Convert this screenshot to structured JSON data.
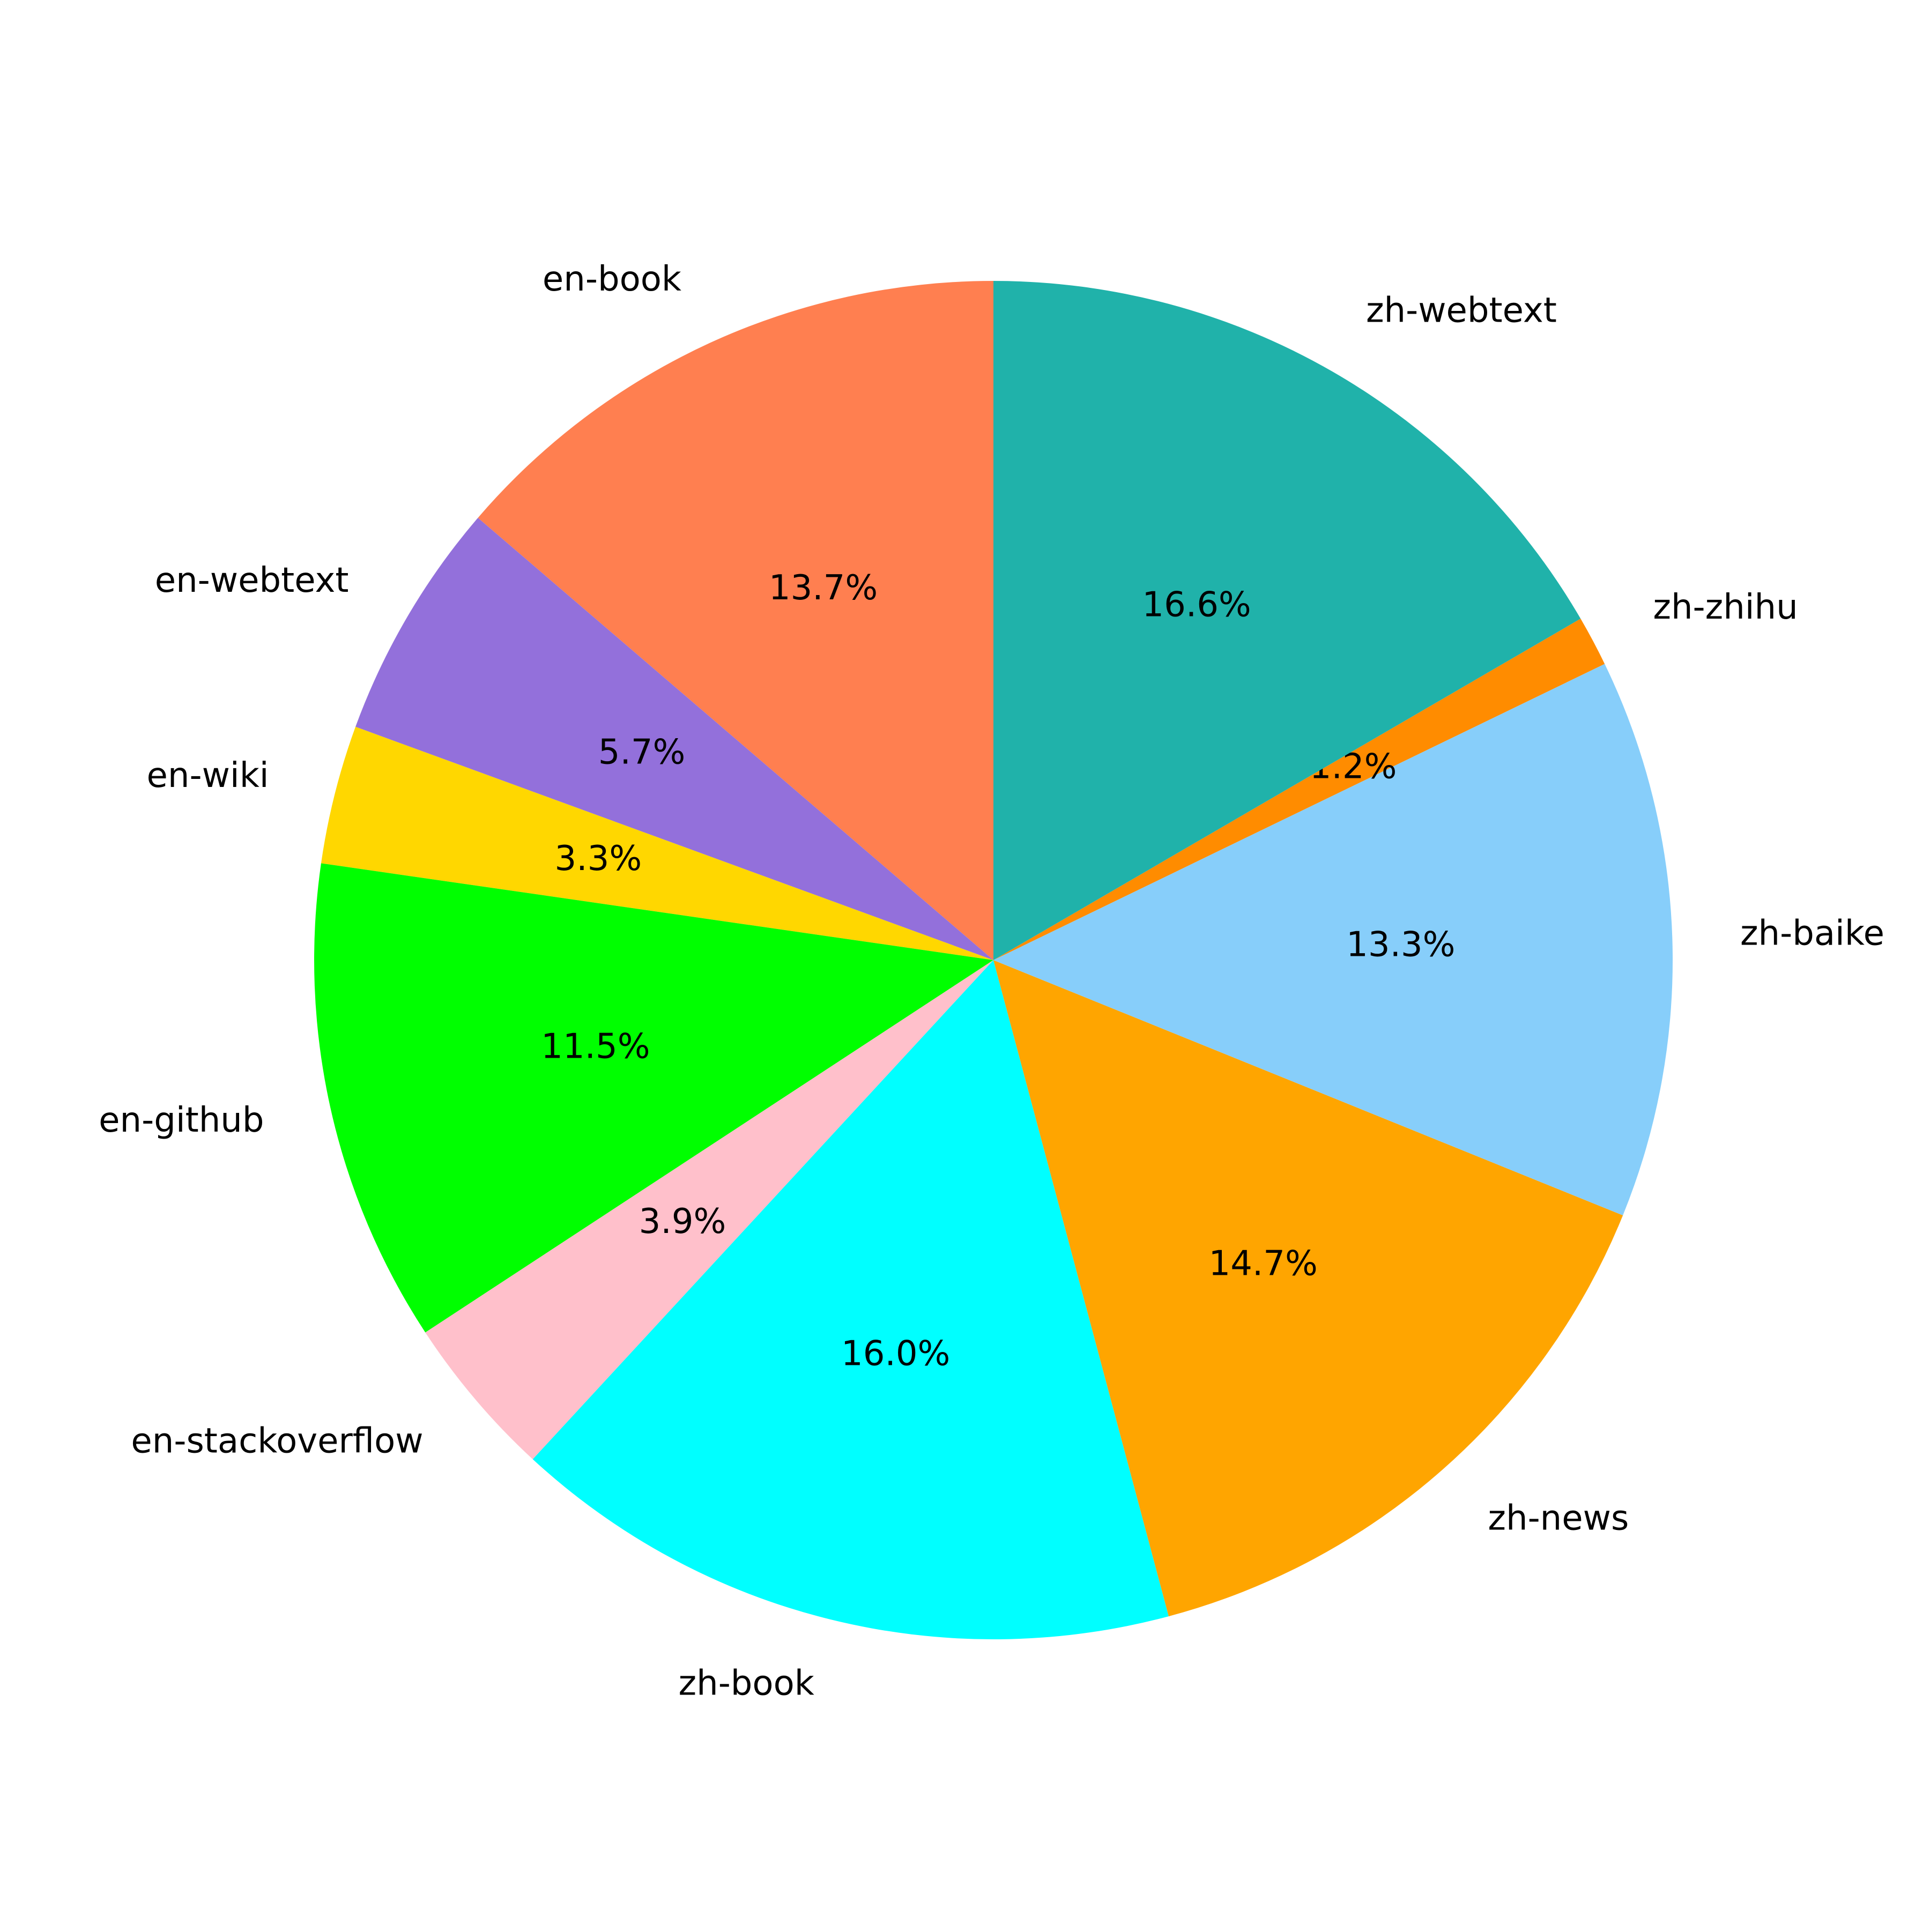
{
  "chart_data": {
    "type": "pie",
    "categories": [
      "en-book",
      "en-webtext",
      "en-wiki",
      "en-github",
      "en-stackoverflow",
      "zh-book",
      "zh-news",
      "zh-baike",
      "zh-zhihu",
      "zh-webtext"
    ],
    "values": [
      13.7,
      5.7,
      3.3,
      11.5,
      3.9,
      16.0,
      14.7,
      13.3,
      1.2,
      16.6
    ],
    "value_labels": [
      "13.7%",
      "5.7%",
      "3.3%",
      "11.5%",
      "3.9%",
      "16.0%",
      "14.7%",
      "13.3%",
      "1.2%",
      "16.6%"
    ],
    "colors": [
      "#ff7f50",
      "#9370db",
      "#ffd700",
      "#00ff00",
      "#ffc0cb",
      "#00ffff",
      "#ffa500",
      "#87cefa",
      "#ff8c00",
      "#20b2aa"
    ],
    "start_angle": 90,
    "direction": "counterclockwise"
  }
}
